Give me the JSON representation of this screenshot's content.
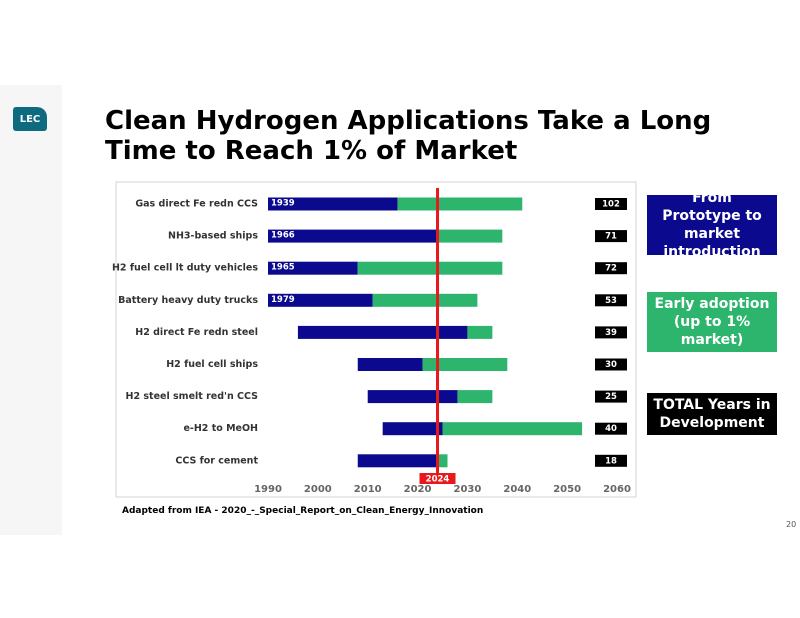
{
  "logo": "LEC",
  "title": "Clean Hydrogen Applications Take a Long Time to Reach 1% of Market",
  "chart_data": {
    "type": "timeline-bar",
    "categories": [
      "Gas direct Fe redn CCS",
      "NH3-based ships",
      "H2 fuel cell lt duty vehicles",
      "Battery heavy duty trucks",
      "H2 direct Fe redn steel",
      "H2 fuel cell ships",
      "H2 steel smelt red'n CCS",
      "e-H2 to MeOH",
      "CCS for cement"
    ],
    "start": [
      1939,
      1966,
      1965,
      1979,
      1996,
      2008,
      2010,
      2013,
      2008
    ],
    "market": [
      2016,
      2024,
      2008,
      2011,
      2030,
      2021,
      2028,
      2025,
      2024
    ],
    "end": [
      2041,
      2037,
      2037,
      2032,
      2035,
      2038,
      2035,
      2053,
      2026
    ],
    "series": [
      {
        "name": "From Prototype to market introduction",
        "color": "#0b0a8f"
      },
      {
        "name": "Early adoption (up to 1% market)",
        "color": "#2db56e"
      },
      {
        "name": "TOTAL Years in Development",
        "color": "#000000",
        "values": [
          102,
          71,
          72,
          53,
          39,
          30,
          25,
          40,
          18
        ]
      }
    ],
    "xlim": [
      1990,
      2060
    ],
    "xticks": [
      1990,
      2000,
      2010,
      2020,
      2030,
      2040,
      2050,
      2060
    ],
    "grid": false,
    "marker": {
      "value": 2024,
      "color": "#e8191c"
    }
  },
  "footnote": "Adapted from IEA - 2020_-_Special_Report_on_Clean_Energy_Innovation",
  "page_number": "20"
}
